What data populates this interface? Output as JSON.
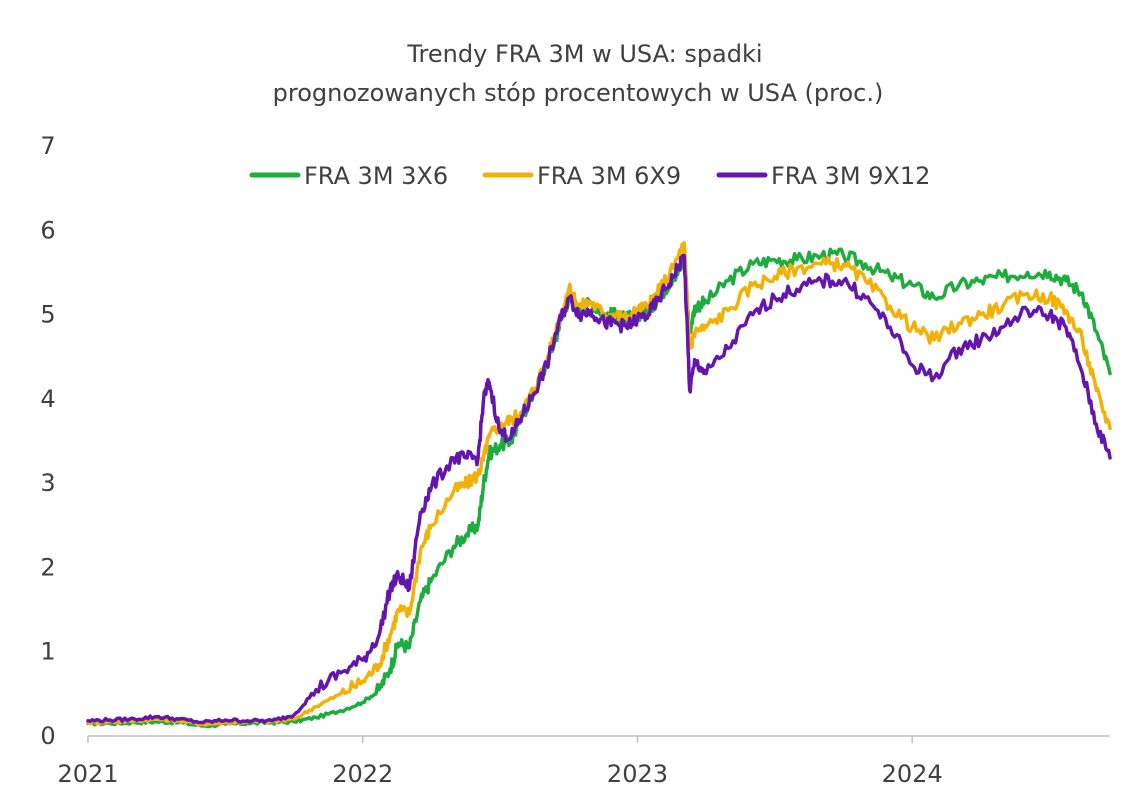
{
  "chart_data": {
    "type": "line",
    "title": "Trendy FRA 3M w USA: spadki",
    "subtitle": "prognozowanych stóp procentowych w USA (proc.)",
    "xlabel": "",
    "ylabel": "",
    "x_ticks": [
      "2021",
      "2022",
      "2023",
      "2024"
    ],
    "xlim": [
      2021.0,
      2024.72
    ],
    "y_ticks": [
      "0",
      "1",
      "2",
      "3",
      "4",
      "5",
      "6",
      "7"
    ],
    "ylim": [
      0,
      7
    ],
    "grid": false,
    "legend": "top",
    "series": [
      {
        "name": "FRA 3M  3X6",
        "color": "#1eac3e",
        "x": [
          2021.0,
          2021.08,
          2021.17,
          2021.25,
          2021.33,
          2021.42,
          2021.5,
          2021.58,
          2021.67,
          2021.75,
          2021.83,
          2021.92,
          2022.0,
          2022.06,
          2022.1,
          2022.13,
          2022.17,
          2022.21,
          2022.25,
          2022.33,
          2022.38,
          2022.42,
          2022.44,
          2022.46,
          2022.5,
          2022.54,
          2022.58,
          2022.62,
          2022.67,
          2022.71,
          2022.75,
          2022.79,
          2022.83,
          2022.88,
          2022.92,
          2022.96,
          2023.0,
          2023.04,
          2023.08,
          2023.13,
          2023.17,
          2023.19,
          2023.21,
          2023.25,
          2023.33,
          2023.42,
          2023.5,
          2023.58,
          2023.67,
          2023.75,
          2023.83,
          2023.92,
          2024.0,
          2024.08,
          2024.17,
          2024.25,
          2024.33,
          2024.42,
          2024.5,
          2024.56,
          2024.62,
          2024.67,
          2024.72
        ],
        "y": [
          0.15,
          0.15,
          0.16,
          0.17,
          0.16,
          0.12,
          0.14,
          0.15,
          0.16,
          0.17,
          0.22,
          0.3,
          0.4,
          0.55,
          0.8,
          1.1,
          1.05,
          1.6,
          1.85,
          2.25,
          2.4,
          2.5,
          3.0,
          3.35,
          3.45,
          3.5,
          3.8,
          4.05,
          4.4,
          4.8,
          5.2,
          5.05,
          5.15,
          5.0,
          5.0,
          4.95,
          5.0,
          5.05,
          5.2,
          5.45,
          5.6,
          4.8,
          5.1,
          5.15,
          5.4,
          5.6,
          5.65,
          5.65,
          5.7,
          5.7,
          5.6,
          5.45,
          5.35,
          5.2,
          5.35,
          5.4,
          5.45,
          5.5,
          5.5,
          5.4,
          5.25,
          4.8,
          4.3
        ]
      },
      {
        "name": "FRA 3M  6X9",
        "color": "#f2b107",
        "x": [
          2021.0,
          2021.08,
          2021.17,
          2021.25,
          2021.33,
          2021.42,
          2021.5,
          2021.58,
          2021.67,
          2021.75,
          2021.83,
          2021.92,
          2022.0,
          2022.06,
          2022.1,
          2022.13,
          2022.17,
          2022.21,
          2022.25,
          2022.33,
          2022.38,
          2022.42,
          2022.44,
          2022.46,
          2022.5,
          2022.54,
          2022.58,
          2022.62,
          2022.67,
          2022.71,
          2022.75,
          2022.79,
          2022.83,
          2022.88,
          2022.92,
          2022.96,
          2023.0,
          2023.04,
          2023.08,
          2023.13,
          2023.17,
          2023.19,
          2023.21,
          2023.25,
          2023.33,
          2023.42,
          2023.5,
          2023.58,
          2023.67,
          2023.75,
          2023.83,
          2023.92,
          2024.0,
          2024.08,
          2024.17,
          2024.25,
          2024.33,
          2024.42,
          2024.5,
          2024.56,
          2024.62,
          2024.67,
          2024.72
        ],
        "y": [
          0.16,
          0.17,
          0.18,
          0.2,
          0.18,
          0.14,
          0.16,
          0.17,
          0.17,
          0.2,
          0.35,
          0.5,
          0.65,
          0.85,
          1.2,
          1.5,
          1.45,
          2.2,
          2.5,
          2.9,
          3.0,
          3.1,
          3.3,
          3.55,
          3.7,
          3.75,
          3.85,
          4.1,
          4.45,
          4.9,
          5.3,
          5.1,
          5.15,
          5.0,
          5.0,
          4.95,
          5.05,
          5.1,
          5.3,
          5.55,
          5.85,
          4.6,
          4.8,
          4.85,
          5.05,
          5.35,
          5.45,
          5.55,
          5.6,
          5.6,
          5.4,
          5.1,
          4.85,
          4.7,
          4.9,
          5.0,
          5.1,
          5.25,
          5.2,
          5.05,
          4.7,
          4.1,
          3.65
        ]
      },
      {
        "name": "FRA 3M 9X12",
        "color": "#6415ae",
        "x": [
          2021.0,
          2021.08,
          2021.17,
          2021.25,
          2021.33,
          2021.42,
          2021.5,
          2021.58,
          2021.67,
          2021.75,
          2021.83,
          2021.92,
          2022.0,
          2022.06,
          2022.1,
          2022.13,
          2022.17,
          2022.21,
          2022.25,
          2022.33,
          2022.38,
          2022.42,
          2022.44,
          2022.46,
          2022.5,
          2022.54,
          2022.58,
          2022.62,
          2022.67,
          2022.71,
          2022.75,
          2022.79,
          2022.83,
          2022.88,
          2022.92,
          2022.96,
          2023.0,
          2023.04,
          2023.08,
          2023.13,
          2023.17,
          2023.19,
          2023.21,
          2023.25,
          2023.33,
          2023.42,
          2023.5,
          2023.58,
          2023.67,
          2023.75,
          2023.83,
          2023.92,
          2024.0,
          2024.08,
          2024.17,
          2024.25,
          2024.33,
          2024.42,
          2024.5,
          2024.56,
          2024.62,
          2024.67,
          2024.72
        ],
        "y": [
          0.18,
          0.19,
          0.2,
          0.23,
          0.2,
          0.16,
          0.19,
          0.18,
          0.18,
          0.25,
          0.55,
          0.75,
          0.9,
          1.2,
          1.75,
          1.9,
          1.75,
          2.65,
          2.95,
          3.3,
          3.3,
          3.3,
          4.0,
          4.2,
          3.6,
          3.55,
          3.8,
          4.05,
          4.4,
          4.85,
          5.2,
          5.0,
          5.05,
          4.9,
          4.9,
          4.85,
          4.95,
          5.0,
          5.2,
          5.45,
          5.7,
          4.1,
          4.45,
          4.3,
          4.6,
          5.0,
          5.2,
          5.3,
          5.4,
          5.4,
          5.2,
          4.85,
          4.4,
          4.25,
          4.6,
          4.7,
          4.85,
          5.05,
          5.0,
          4.85,
          4.3,
          3.7,
          3.3
        ]
      }
    ]
  }
}
